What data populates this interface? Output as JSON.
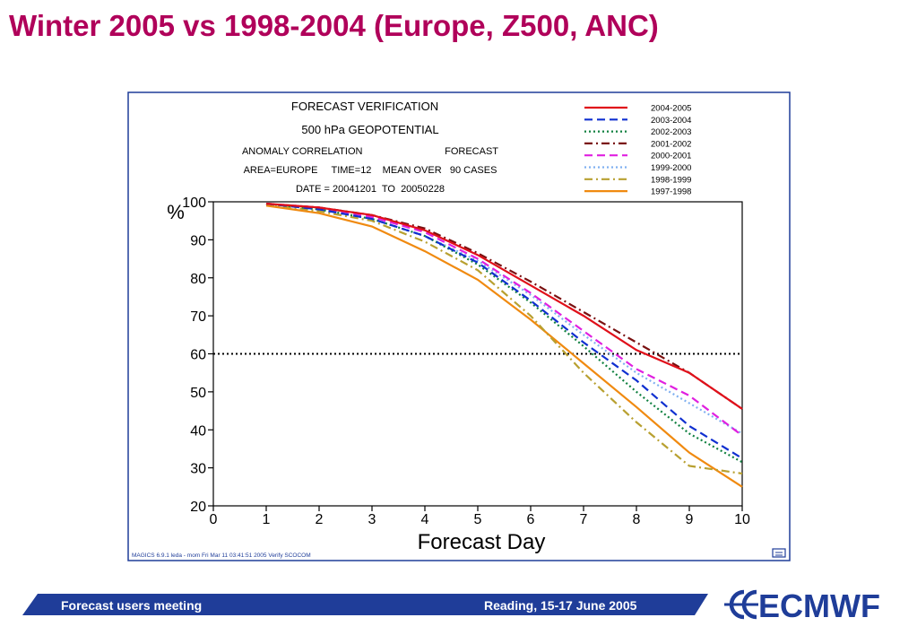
{
  "slide": {
    "title": "Winter 2005 vs 1998-2004 (Europe, Z500, ANC)",
    "footer_left": "Forecast users meeting",
    "footer_right": "Reading, 15-17 June 2005",
    "logo_text": "ECMWF",
    "colors": {
      "title": "#b0005a",
      "footer_bar": "#1f3d99",
      "frame": "#1f3d99"
    }
  },
  "chart_data": {
    "type": "line",
    "header": [
      "FORECAST VERIFICATION",
      "500 hPa GEOPOTENTIAL",
      "ANOMALY CORRELATION                              FORECAST",
      "AREA=EUROPE     TIME=12    MEAN OVER   90 CASES",
      "DATE = 20041201  TO  20050228"
    ],
    "xlabel": "Forecast Day",
    "ylabel": "%",
    "xlim": [
      0,
      10
    ],
    "ylim": [
      20,
      100
    ],
    "xticks": [
      0,
      1,
      2,
      3,
      4,
      5,
      6,
      7,
      8,
      9,
      10
    ],
    "yticks": [
      20,
      30,
      40,
      50,
      60,
      70,
      80,
      90,
      100
    ],
    "reference_line": 60,
    "footnote": "MAGICS 6.9.1 leda - mom Fri Mar 11 03:41:51 2005 Verify SCOCOM",
    "legend_position": "top-right",
    "x": [
      1,
      2,
      3,
      4,
      5,
      6,
      7,
      8,
      9,
      10
    ],
    "series": [
      {
        "name": "2004-2005",
        "color": "#e0101a",
        "dash": "solid",
        "values": [
          99.5,
          98.5,
          96.5,
          92.5,
          86,
          78,
          70,
          61,
          55,
          45.5
        ]
      },
      {
        "name": "2003-2004",
        "color": "#1030d0",
        "dash": "dash",
        "values": [
          99.5,
          98,
          95.5,
          91,
          84,
          74,
          63,
          53,
          41,
          32.5
        ]
      },
      {
        "name": "2002-2003",
        "color": "#108040",
        "dash": "dot",
        "values": [
          99.5,
          98,
          95.5,
          91,
          83.5,
          73.5,
          62,
          50,
          39,
          31.5
        ]
      },
      {
        "name": "2001-2002",
        "color": "#7a1010",
        "dash": "dashdot",
        "values": [
          99.5,
          98.5,
          96.5,
          93,
          86.5,
          79,
          71,
          63,
          55,
          45.5
        ]
      },
      {
        "name": "2000-2001",
        "color": "#e020e0",
        "dash": "dash",
        "values": [
          99.5,
          98.5,
          96,
          92,
          85,
          76,
          66,
          56,
          49,
          38.5
        ]
      },
      {
        "name": "1999-2000",
        "color": "#80b0f0",
        "dash": "dot",
        "values": [
          99.5,
          98,
          95.5,
          91,
          84.5,
          75.5,
          65,
          55,
          47,
          39
        ]
      },
      {
        "name": "1998-1999",
        "color": "#b8a030",
        "dash": "dashdot",
        "values": [
          99.5,
          97.5,
          95,
          89.5,
          82,
          70,
          55,
          42,
          30.5,
          28.5
        ]
      },
      {
        "name": "1997-1998",
        "color": "#f08a10",
        "dash": "solid",
        "values": [
          99,
          97,
          93.5,
          87,
          79.5,
          69,
          57.5,
          46,
          34,
          25
        ]
      }
    ]
  }
}
